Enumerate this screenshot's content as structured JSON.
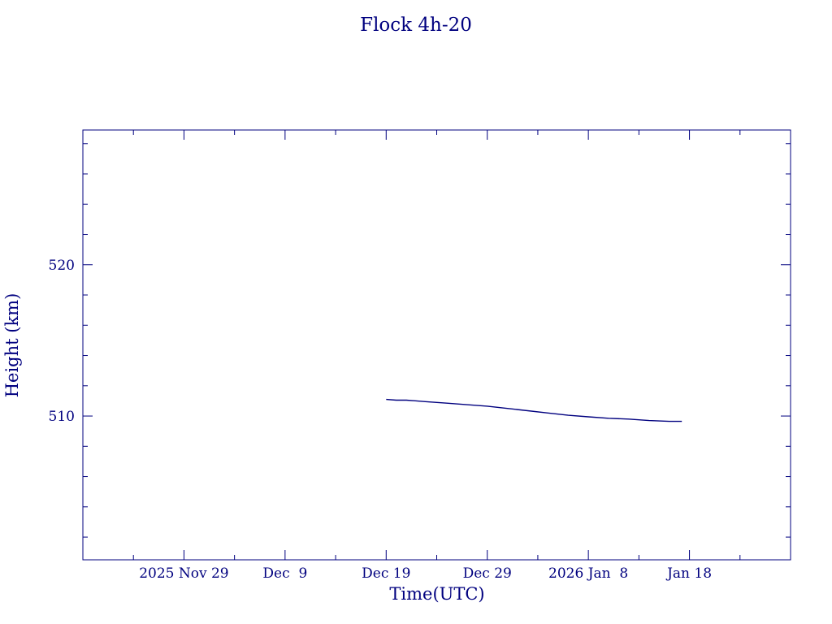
{
  "chart_data": {
    "type": "line",
    "title": "Flock 4h-20",
    "xlabel": "Time(UTC)",
    "ylabel": "Height (km)",
    "color": "#00007f",
    "x_axis": {
      "unit": "date",
      "range": [
        "2025-11-19",
        "2026-01-28"
      ],
      "ticks": [
        {
          "date": "2025-11-29",
          "label": "2025 Nov 29"
        },
        {
          "date": "2025-12-09",
          "label": "Dec  9"
        },
        {
          "date": "2025-12-19",
          "label": "Dec 19"
        },
        {
          "date": "2025-12-29",
          "label": "Dec 29"
        },
        {
          "date": "2026-01-08",
          "label": "2026 Jan  8"
        },
        {
          "date": "2026-01-18",
          "label": "Jan 18"
        }
      ],
      "minor_ticks": [
        "2025-11-24",
        "2025-12-04",
        "2025-12-14",
        "2025-12-24",
        "2026-01-03",
        "2026-01-13",
        "2026-01-23"
      ]
    },
    "y_axis": {
      "unit": "km",
      "range": [
        500.5,
        528.9
      ],
      "ticks": [
        {
          "value": 510,
          "label": "510"
        },
        {
          "value": 520,
          "label": "520"
        }
      ],
      "minor_ticks": [
        502,
        504,
        506,
        508,
        512,
        514,
        516,
        518,
        522,
        524,
        526,
        528
      ]
    },
    "grid": false,
    "series": [
      {
        "points": [
          {
            "x": "2025-12-19T00:00",
            "y": 511.1
          },
          {
            "x": "2025-12-20T00:00",
            "y": 511.05
          },
          {
            "x": "2025-12-21T00:00",
            "y": 511.05
          },
          {
            "x": "2025-12-23T00:00",
            "y": 510.95
          },
          {
            "x": "2025-12-25T00:00",
            "y": 510.85
          },
          {
            "x": "2025-12-27T00:00",
            "y": 510.75
          },
          {
            "x": "2025-12-29T00:00",
            "y": 510.65
          },
          {
            "x": "2025-12-31T00:00",
            "y": 510.5
          },
          {
            "x": "2026-01-02T00:00",
            "y": 510.35
          },
          {
            "x": "2026-01-04T00:00",
            "y": 510.2
          },
          {
            "x": "2026-01-06T00:00",
            "y": 510.05
          },
          {
            "x": "2026-01-08T00:00",
            "y": 509.95
          },
          {
            "x": "2026-01-10T00:00",
            "y": 509.85
          },
          {
            "x": "2026-01-12T00:00",
            "y": 509.8
          },
          {
            "x": "2026-01-14T00:00",
            "y": 509.7
          },
          {
            "x": "2026-01-16T00:00",
            "y": 509.65
          },
          {
            "x": "2026-01-17T06:00",
            "y": 509.65
          }
        ]
      }
    ]
  }
}
